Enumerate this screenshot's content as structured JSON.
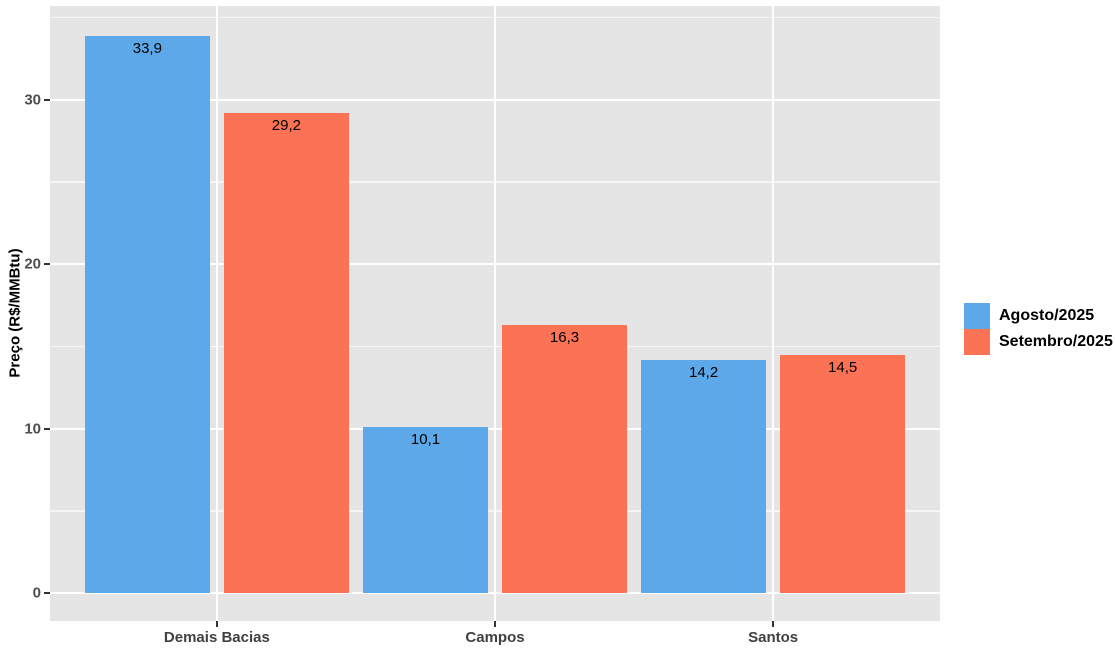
{
  "chart_data": {
    "type": "bar",
    "title": "",
    "categories": [
      "Demais Bacias",
      "Campos",
      "Santos"
    ],
    "series": [
      {
        "name": "Agosto/2025",
        "color": "#5CA8E8",
        "values": [
          33.9,
          10.1,
          14.2
        ],
        "value_labels": [
          "33,9",
          "10,1",
          "14,2"
        ]
      },
      {
        "name": "Setembro/2025",
        "color": "#FB7255",
        "values": [
          29.2,
          16.3,
          14.5
        ],
        "value_labels": [
          "29,2",
          "16,3",
          "14,5"
        ]
      }
    ],
    "xlabel": "",
    "ylabel": "Preço (R$/MMBtu)",
    "ylim": [
      -1.7,
      35.7
    ],
    "yticks_major": [
      0,
      10,
      20,
      30
    ],
    "ytick_labels": [
      "0",
      "10",
      "20",
      "30"
    ],
    "yticks_minor": [
      5,
      15,
      25,
      35
    ],
    "grid": "white horizontal major+minor gridlines, vertical major gridline at each category center",
    "legend_position": "right, vertically centered",
    "panel_bg": "#E5E5E5",
    "grid_color": "#FFFFFF",
    "axis_tick_color": "#333333",
    "axis_text_color": "#4D4D4D",
    "bar_label_color": "#000000"
  }
}
